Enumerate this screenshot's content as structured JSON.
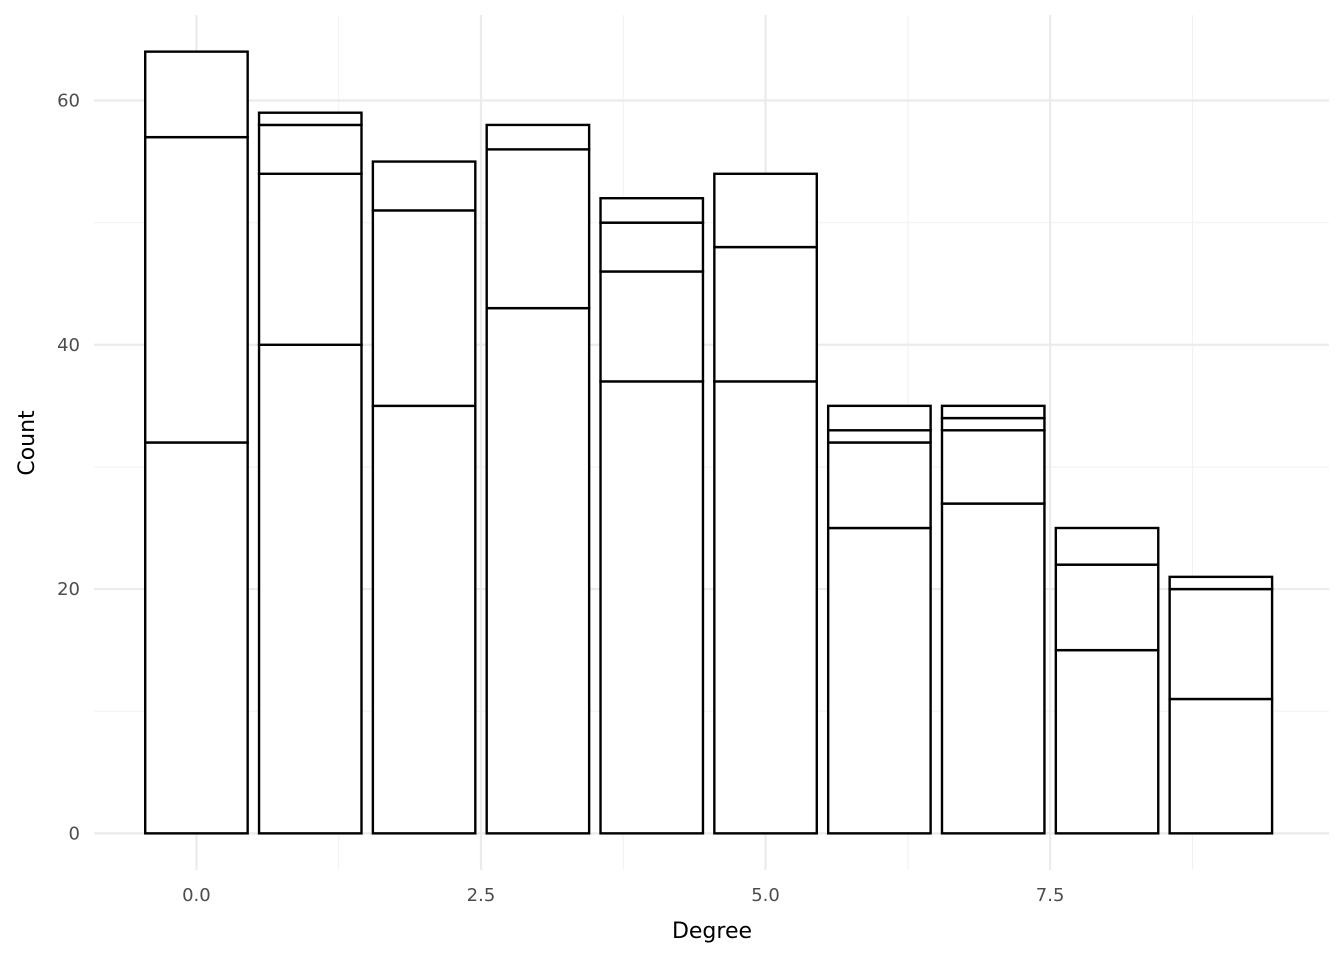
{
  "chart_data": {
    "type": "bar",
    "stacked": true,
    "title": "",
    "xlabel": "Degree",
    "ylabel": "Count",
    "xlim": [
      -0.9,
      9.95
    ],
    "ylim": [
      -3,
      67
    ],
    "x_ticks": [
      0.0,
      2.5,
      5.0,
      7.5
    ],
    "x_tick_labels": [
      "0.0",
      "2.5",
      "5.0",
      "7.5"
    ],
    "y_ticks": [
      0,
      20,
      40,
      60
    ],
    "y_tick_labels": [
      "0",
      "20",
      "40",
      "60"
    ],
    "grid": true,
    "legend": "none",
    "bar_fill": "#ffffff",
    "bar_stroke": "#000000",
    "bars": [
      {
        "x": 0,
        "cumulative_values": [
          32,
          57,
          64
        ]
      },
      {
        "x": 1,
        "cumulative_values": [
          40,
          54,
          58,
          59
        ]
      },
      {
        "x": 2,
        "cumulative_values": [
          35,
          51,
          55
        ]
      },
      {
        "x": 3,
        "cumulative_values": [
          43,
          56,
          58
        ]
      },
      {
        "x": 4,
        "cumulative_values": [
          37,
          46,
          50,
          52
        ]
      },
      {
        "x": 5,
        "cumulative_values": [
          37,
          48,
          54
        ]
      },
      {
        "x": 6,
        "cumulative_values": [
          25,
          32,
          33,
          35
        ]
      },
      {
        "x": 7,
        "cumulative_values": [
          27,
          33,
          34,
          35
        ]
      },
      {
        "x": 8,
        "cumulative_values": [
          15,
          22,
          25
        ]
      },
      {
        "x": 9,
        "cumulative_values": [
          11,
          20,
          21
        ]
      }
    ]
  }
}
